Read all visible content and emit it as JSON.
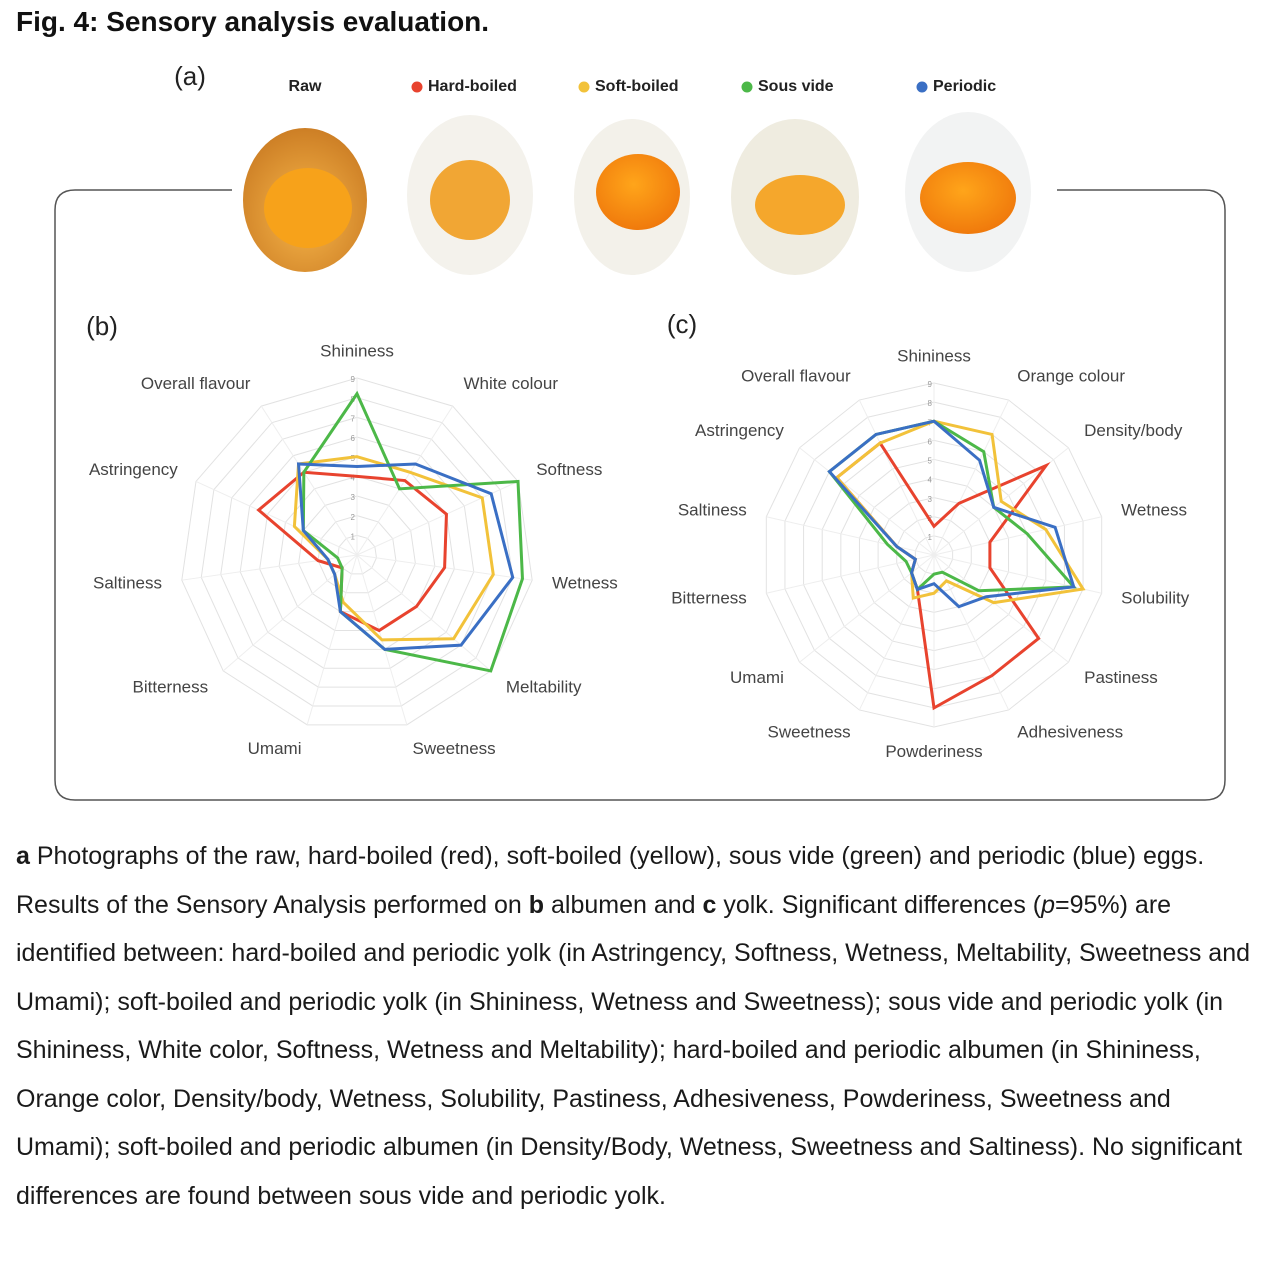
{
  "figure": {
    "title": "Fig. 4: Sensory analysis evaluation.",
    "panel_a": "(a)",
    "raw_label": "Raw"
  },
  "chart_data": [
    {
      "type": "radar",
      "panel": "(b)",
      "categories": [
        "Shininess",
        "White colour",
        "Softness",
        "Wetness",
        "Meltability",
        "Sweetness",
        "Umami",
        "Bitterness",
        "Saltiness",
        "Astringency",
        "Overall flavour"
      ],
      "rlim": [
        0,
        9
      ],
      "rticks": [
        1,
        2,
        3,
        4,
        5,
        6,
        7,
        8,
        9
      ],
      "series": [
        {
          "name": "Hard-boiled",
          "color": "#e8432e",
          "values": [
            4,
            4.5,
            5,
            4.5,
            4,
            4,
            3,
            1,
            2,
            5.5,
            5
          ]
        },
        {
          "name": "Soft-boiled",
          "color": "#f2c23a",
          "values": [
            5,
            5,
            7,
            7,
            6.5,
            4.5,
            2.5,
            1.5,
            1.5,
            3.5,
            5.5
          ]
        },
        {
          "name": "Sous vide",
          "color": "#4cb848",
          "values": [
            8.2,
            4,
            9,
            8.5,
            9,
            5,
            3,
            1,
            1,
            3,
            5
          ]
        },
        {
          "name": "Periodic",
          "color": "#3a6fc4",
          "values": [
            4.5,
            5.5,
            7.5,
            8,
            7,
            5,
            3,
            1.5,
            1.5,
            3,
            5.5
          ]
        }
      ]
    },
    {
      "type": "radar",
      "panel": "(c)",
      "categories": [
        "Shininess",
        "Orange colour",
        "Density/body",
        "Wetness",
        "Solubility",
        "Pastiness",
        "Adhesiveness",
        "Powderiness",
        "Sweetness",
        "Umami",
        "Bitterness",
        "Saltiness",
        "Astringency",
        "Overall flavour"
      ],
      "rlim": [
        0,
        9
      ],
      "rticks": [
        1,
        2,
        3,
        4,
        5,
        6,
        7,
        8,
        9
      ],
      "series": [
        {
          "color": "#e8432e",
          "values": [
            1.5,
            3,
            7.5,
            3,
            3,
            7,
            7,
            8,
            2,
            1.5,
            1,
            2,
            6.5,
            6.5
          ]
        },
        {
          "color": "#f2c23a",
          "values": [
            7,
            7,
            4.5,
            6,
            8,
            4,
            1.5,
            2,
            2.5,
            1.5,
            1,
            2,
            6.5,
            6.5
          ]
        },
        {
          "color": "#4cb848",
          "values": [
            7,
            6,
            4,
            5,
            7.5,
            3,
            1,
            1,
            2,
            1.5,
            1.5,
            2.5,
            7,
            7
          ]
        },
        {
          "color": "#3a6fc4",
          "values": [
            7,
            5.5,
            4,
            6.5,
            7.5,
            3.5,
            3,
            1.5,
            2,
            1.5,
            1,
            2,
            7,
            7
          ]
        }
      ]
    }
  ],
  "caption": [
    {
      "text": "a",
      "style": "bold"
    },
    {
      "text": " Photographs of the raw, hard-boiled (red), soft-boiled (yellow), sous vide (green) and periodic (blue) eggs. Results of the Sensory Analysis performed on ",
      "style": "normal"
    },
    {
      "text": "b",
      "style": "bold"
    },
    {
      "text": " albumen and ",
      "style": "normal"
    },
    {
      "text": "c",
      "style": "bold"
    },
    {
      "text": " yolk. Significant differences (",
      "style": "normal"
    },
    {
      "text": "p",
      "style": "italic"
    },
    {
      "text": "=95%) are identified between: hard-boiled and periodic yolk (in Astringency, Softness, Wetness, Meltability, Sweetness and Umami); soft-boiled and periodic yolk (in Shininess, Wetness and Sweetness); sous vide and periodic yolk (in Shininess, White color, Softness, Wetness and Meltability); hard-boiled and periodic albumen (in Shininess, Orange color, Density/body, Wetness, Solubility, Pastiness, Adhesiveness, Powderiness, Sweetness and Umami); soft-boiled and periodic albumen (in Density/Body, Wetness, Sweetness and Saltiness). No significant differences are found between sous vide and periodic yolk.",
      "style": "normal"
    }
  ]
}
